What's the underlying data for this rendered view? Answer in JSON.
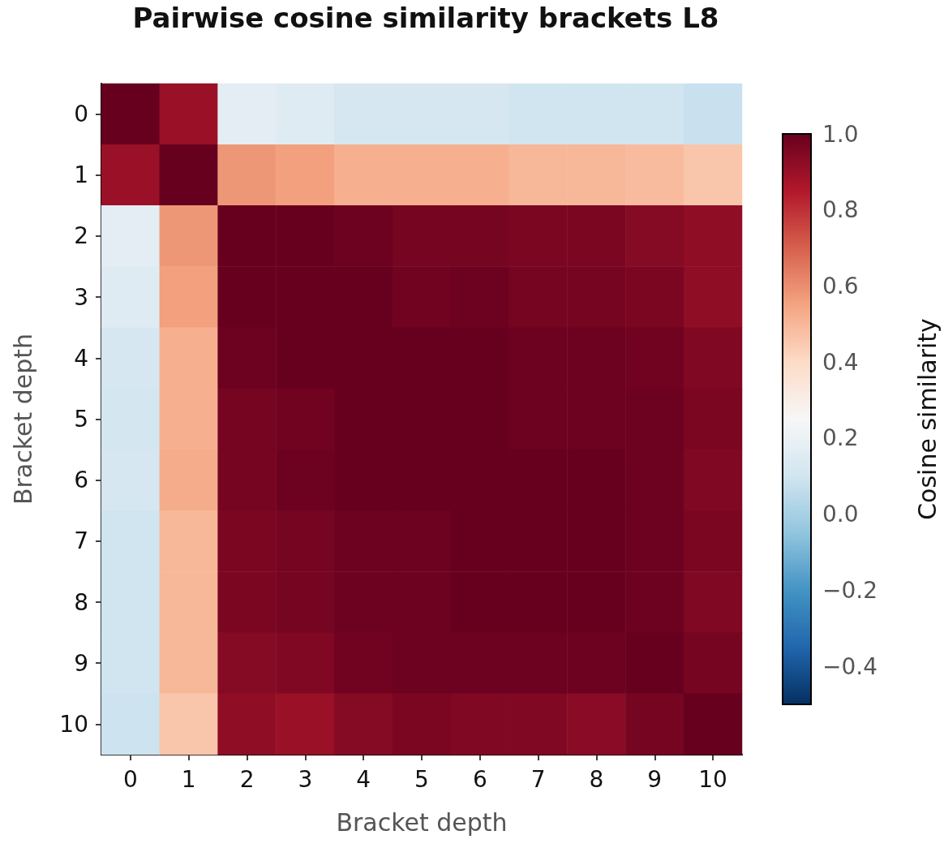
{
  "chart_data": {
    "type": "heatmap",
    "title": "Pairwise cosine similarity brackets L8",
    "xlabel": "Bracket depth",
    "ylabel": "Bracket depth",
    "clabel": "Cosine similarity",
    "categories": [
      "0",
      "1",
      "2",
      "3",
      "4",
      "5",
      "6",
      "7",
      "8",
      "9",
      "10"
    ],
    "y_categories": [
      "0",
      "1",
      "2",
      "3",
      "4",
      "5",
      "6",
      "7",
      "8",
      "9",
      "10"
    ],
    "cells": [
      [
        1.0,
        0.9,
        0.17,
        0.15,
        0.12,
        0.12,
        0.12,
        0.1,
        0.1,
        0.1,
        0.08
      ],
      [
        0.9,
        1.0,
        0.58,
        0.56,
        0.52,
        0.52,
        0.52,
        0.5,
        0.5,
        0.49,
        0.46
      ],
      [
        0.17,
        0.58,
        1.0,
        1.0,
        0.99,
        0.97,
        0.97,
        0.96,
        0.96,
        0.94,
        0.92
      ],
      [
        0.15,
        0.56,
        1.0,
        1.0,
        1.0,
        0.98,
        0.99,
        0.97,
        0.97,
        0.96,
        0.92
      ],
      [
        0.12,
        0.52,
        0.99,
        1.0,
        1.0,
        1.0,
        1.0,
        0.99,
        0.99,
        0.98,
        0.95
      ],
      [
        0.11,
        0.52,
        0.97,
        0.98,
        1.0,
        1.0,
        1.0,
        0.99,
        0.99,
        0.99,
        0.96
      ],
      [
        0.12,
        0.53,
        0.97,
        0.99,
        1.0,
        1.0,
        1.0,
        1.0,
        1.0,
        0.99,
        0.95
      ],
      [
        0.1,
        0.5,
        0.96,
        0.97,
        0.99,
        0.99,
        1.0,
        1.0,
        1.0,
        0.99,
        0.96
      ],
      [
        0.1,
        0.5,
        0.96,
        0.97,
        0.99,
        0.99,
        1.0,
        1.0,
        1.0,
        0.99,
        0.95
      ],
      [
        0.1,
        0.5,
        0.94,
        0.95,
        0.98,
        0.99,
        0.99,
        0.99,
        0.99,
        1.0,
        0.97
      ],
      [
        0.09,
        0.46,
        0.92,
        0.9,
        0.94,
        0.96,
        0.95,
        0.95,
        0.93,
        0.97,
        1.0
      ]
    ],
    "clim": [
      -0.5,
      1.0
    ],
    "cticks": [
      -0.4,
      -0.2,
      {
        "value": 0,
        "label": "0.0"
      },
      0.2,
      0.4,
      0.6,
      0.8,
      {
        "value": 1,
        "label": "1.0"
      }
    ]
  }
}
